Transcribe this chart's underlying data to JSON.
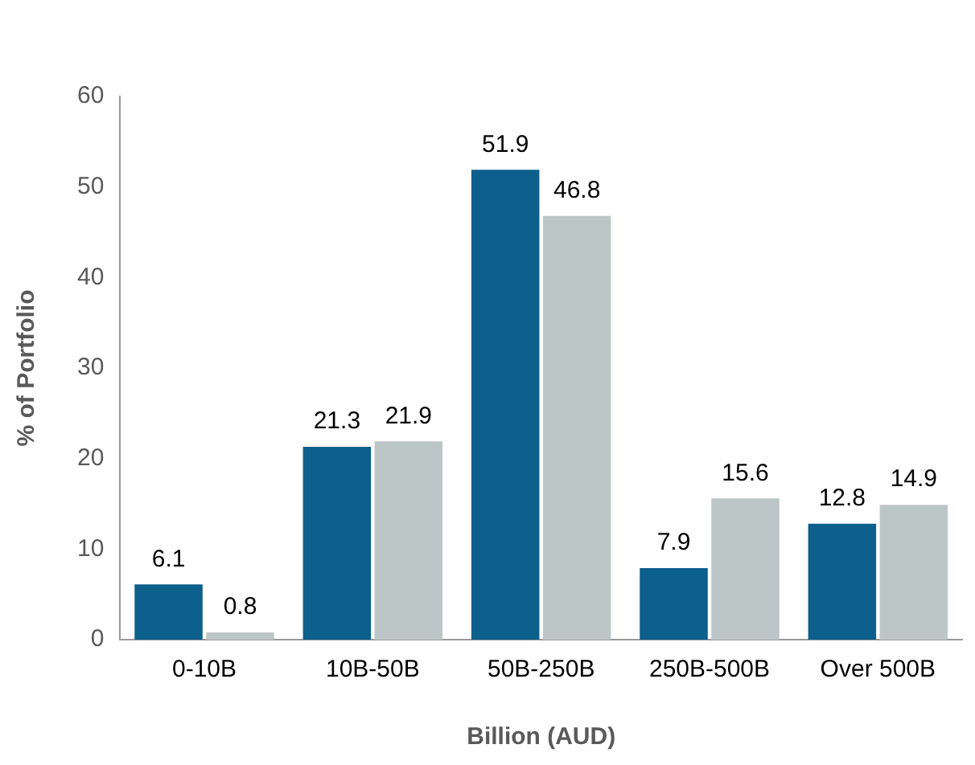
{
  "chart_data": {
    "type": "bar",
    "xlabel": "Billion (AUD)",
    "ylabel": "% of Portfolio",
    "categories": [
      "0-10B",
      "10B-50B",
      "50B-250B",
      "250B-500B",
      "Over 500B"
    ],
    "series": [
      {
        "color": "#0d5f8c",
        "values": [
          6.1,
          21.3,
          51.9,
          7.9,
          12.8
        ]
      },
      {
        "color": "#bdc6c6",
        "values": [
          0.8,
          21.9,
          46.8,
          15.6,
          14.9
        ]
      }
    ],
    "ylim": [
      0,
      60
    ],
    "yticks": [
      0,
      10,
      20,
      30,
      40,
      50,
      60
    ],
    "grid": false,
    "legend": false,
    "data_labels": true
  }
}
